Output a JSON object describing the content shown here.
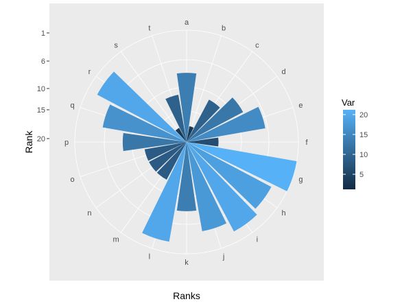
{
  "chart_data": {
    "type": "bar",
    "coord": "polar",
    "xlabel": "Ranks",
    "ylabel": "Rank",
    "categories": [
      "a",
      "b",
      "c",
      "d",
      "e",
      "f",
      "g",
      "h",
      "i",
      "j",
      "k",
      "l",
      "m",
      "n",
      "o",
      "p",
      "q",
      "r",
      "s",
      "t"
    ],
    "values": [
      13,
      3,
      9,
      12,
      15,
      6,
      21,
      18,
      19,
      17,
      13,
      19,
      8,
      8,
      8,
      12,
      16,
      19,
      3,
      9
    ],
    "radial_ticks": [
      "1",
      "6",
      "10",
      "15",
      "20"
    ],
    "legend": {
      "title": "Var",
      "labels": [
        "20",
        "15",
        "10",
        "5"
      ],
      "low_color": "#132B43",
      "high_color": "#56B1F7"
    },
    "panel_background": "#EBEBEB",
    "grid_color": "#FFFFFF"
  }
}
